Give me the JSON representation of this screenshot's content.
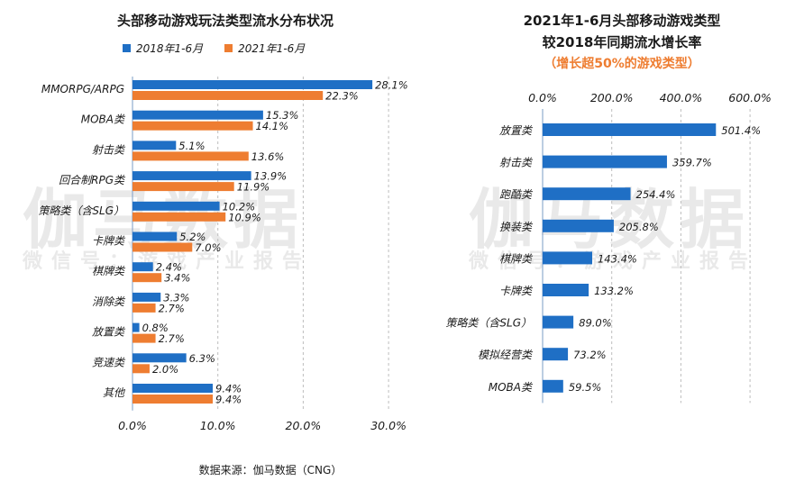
{
  "watermark": {
    "main": "伽马数据",
    "sub": "微信号：游戏产业报告"
  },
  "source": "数据来源：伽马数据（CNG）",
  "colors": {
    "blue": "#1f6fc5",
    "orange": "#ee7d31",
    "subtitle_orange": "#ee7d31",
    "grid": "#bdbdbd"
  },
  "chart_data": [
    {
      "type": "bar",
      "orientation": "horizontal",
      "title": "头部移动游戏玩法类型流水分布状况",
      "categories": [
        "MMORPG/ARPG",
        "MOBA类",
        "射击类",
        "回合制RPG类",
        "策略类（含SLG）",
        "卡牌类",
        "棋牌类",
        "消除类",
        "放置类",
        "竞速类",
        "其他"
      ],
      "series": [
        {
          "name": "2018年1-6月",
          "color": "#1f6fc5",
          "values": [
            28.1,
            15.3,
            5.1,
            13.9,
            10.2,
            5.2,
            2.4,
            3.3,
            0.8,
            6.3,
            9.4
          ]
        },
        {
          "name": "2021年1-6月",
          "color": "#ee7d31",
          "values": [
            22.3,
            14.1,
            13.6,
            11.9,
            10.9,
            7.0,
            3.4,
            2.7,
            2.7,
            2.0,
            9.4
          ]
        }
      ],
      "value_labels": [
        [
          "28.1%",
          "15.3%",
          "5.1%",
          "13.9%",
          "10.2%",
          "5.2%",
          "2.4%",
          "3.3%",
          "0.8%",
          "6.3%",
          "9.4%"
        ],
        [
          "22.3%",
          "14.1%",
          "13.6%",
          "11.9%",
          "10.9%",
          "7.0%",
          "3.4%",
          "2.7%",
          "2.7%",
          "2.0%",
          "9.4%"
        ]
      ],
      "x_ticks": [
        "0.0%",
        "10.0%",
        "20.0%",
        "30.0%"
      ],
      "xlim": [
        0,
        30
      ],
      "grid": "vertical dashed",
      "legend": "top"
    },
    {
      "type": "bar",
      "orientation": "horizontal",
      "title_line1": "2021年1-6月头部移动游戏类型",
      "title_line2": "较2018年同期流水增长率",
      "subtitle": "（增长超50%的游戏类型）",
      "categories": [
        "放置类",
        "射击类",
        "跑酷类",
        "换装类",
        "棋牌类",
        "卡牌类",
        "策略类（含SLG）",
        "模拟经营类",
        "MOBA类"
      ],
      "values": [
        501.4,
        359.7,
        254.4,
        205.8,
        143.4,
        133.2,
        89.0,
        73.2,
        59.5
      ],
      "value_labels": [
        "501.4%",
        "359.7%",
        "254.4%",
        "205.8%",
        "143.4%",
        "133.2%",
        "89.0%",
        "73.2%",
        "59.5%"
      ],
      "x_ticks": [
        "0.0%",
        "200.0%",
        "400.0%",
        "600.0%"
      ],
      "xlim": [
        0,
        600
      ],
      "axis_position": "top",
      "grid": "vertical dashed"
    }
  ]
}
